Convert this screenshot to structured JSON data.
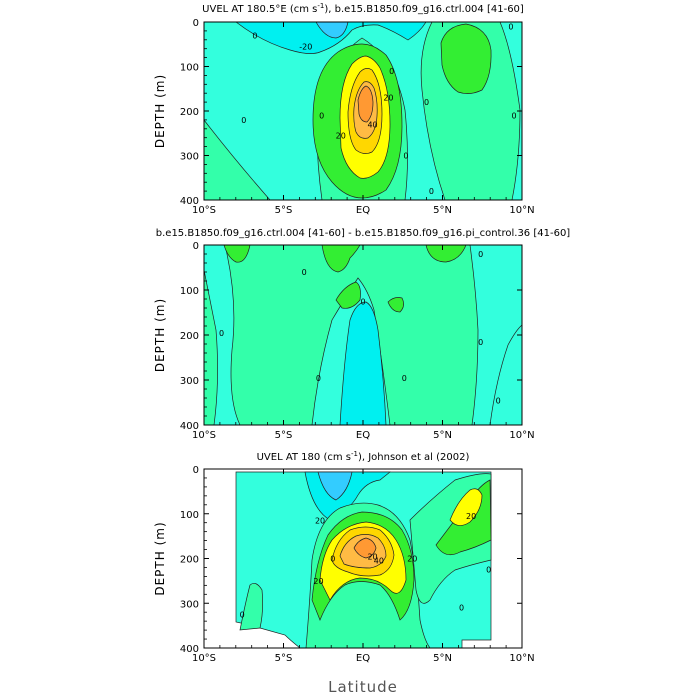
{
  "figure": {
    "xlabel": "Latitude",
    "colors": {
      "cyan_deep": "#33ccff",
      "cyan": "#00f0f0",
      "cyan_pale": "#33ffdd",
      "aqua": "#33ffaa",
      "green": "#33ee33",
      "yellow": "#ffff00",
      "gold": "#ffd700",
      "orange_light": "#ffbb44",
      "orange": "#ff9933"
    }
  },
  "chart_data": [
    {
      "type": "heatmap",
      "title_parts": [
        "UVEL AT 180.5°E (cm s",
        "-1",
        "), b.e15.B1850.f09_g16.ctrl.004 [41-60]"
      ],
      "xlabel": "",
      "ylabel": "DEPTH (m)",
      "xticks": [
        "10°S",
        "5°S",
        "EQ",
        "5°N",
        "10°N"
      ],
      "xtick_values": [
        -10,
        -5,
        0,
        5,
        10
      ],
      "yticks": [
        "0",
        "100",
        "200",
        "300",
        "400"
      ],
      "ytick_values": [
        0,
        100,
        200,
        300,
        400
      ],
      "xlim": [
        -10,
        10
      ],
      "ylim": [
        400,
        0
      ],
      "contour_labels": [
        {
          "text": "0",
          "lat": -6.8,
          "depth": 30
        },
        {
          "text": "-20",
          "lat": -3.6,
          "depth": 55
        },
        {
          "text": "0",
          "lat": -7.5,
          "depth": 220
        },
        {
          "text": "0",
          "lat": -2.6,
          "depth": 210
        },
        {
          "text": "0",
          "lat": 1.8,
          "depth": 110
        },
        {
          "text": "20",
          "lat": 1.6,
          "depth": 170
        },
        {
          "text": "40",
          "lat": 0.6,
          "depth": 230
        },
        {
          "text": "20",
          "lat": -1.4,
          "depth": 255
        },
        {
          "text": "0",
          "lat": 2.7,
          "depth": 300
        },
        {
          "text": "0",
          "lat": 4.0,
          "depth": 180
        },
        {
          "text": "0",
          "lat": 4.3,
          "depth": 380
        },
        {
          "text": "0",
          "lat": 9.5,
          "depth": 210
        },
        {
          "text": "0",
          "lat": 9.3,
          "depth": 10
        }
      ]
    },
    {
      "type": "heatmap",
      "title": "b.e15.B1850.f09_g16.ctrl.004 [41-60] - b.e15.B1850.f09_g16.pi_control.36 [41-60]",
      "xlabel": "",
      "ylabel": "DEPTH (m)",
      "xticks": [
        "10°S",
        "5°S",
        "EQ",
        "5°N",
        "10°N"
      ],
      "xtick_values": [
        -10,
        -5,
        0,
        5,
        10
      ],
      "yticks": [
        "0",
        "100",
        "200",
        "300",
        "400"
      ],
      "ytick_values": [
        0,
        100,
        200,
        300,
        400
      ],
      "xlim": [
        -10,
        10
      ],
      "ylim": [
        400,
        0
      ],
      "contour_labels": [
        {
          "text": "0",
          "lat": -3.7,
          "depth": 60
        },
        {
          "text": "0",
          "lat": -8.9,
          "depth": 195
        },
        {
          "text": "0",
          "lat": -2.8,
          "depth": 295
        },
        {
          "text": "0",
          "lat": 0.0,
          "depth": 125
        },
        {
          "text": "0",
          "lat": 2.6,
          "depth": 295
        },
        {
          "text": "0",
          "lat": 7.4,
          "depth": 20
        },
        {
          "text": "0",
          "lat": 7.4,
          "depth": 215
        },
        {
          "text": "0",
          "lat": 8.5,
          "depth": 345
        }
      ]
    },
    {
      "type": "heatmap",
      "title_parts": [
        "UVEL AT 180 (cm s",
        "-1",
        "), Johnson et al (2002)"
      ],
      "xlabel": "Latitude",
      "ylabel": "DEPTH (m)",
      "xticks": [
        "10°S",
        "5°S",
        "EQ",
        "5°N",
        "10°N"
      ],
      "xtick_values": [
        -10,
        -5,
        0,
        5,
        10
      ],
      "yticks": [
        "0",
        "100",
        "200",
        "300",
        "400"
      ],
      "ytick_values": [
        0,
        100,
        200,
        300,
        400
      ],
      "xlim": [
        -10,
        10
      ],
      "ylim": [
        400,
        0
      ],
      "data_extent_lat": [
        -8,
        8
      ],
      "contour_labels": [
        {
          "text": "20",
          "lat": -2.7,
          "depth": 115
        },
        {
          "text": "0",
          "lat": -1.9,
          "depth": 200
        },
        {
          "text": "20",
          "lat": 0.6,
          "depth": 195
        },
        {
          "text": "40",
          "lat": 1.0,
          "depth": 205
        },
        {
          "text": "20",
          "lat": 3.1,
          "depth": 200
        },
        {
          "text": "20",
          "lat": -2.8,
          "depth": 250
        },
        {
          "text": "20",
          "lat": 6.8,
          "depth": 105
        },
        {
          "text": "0",
          "lat": 6.2,
          "depth": 310
        },
        {
          "text": "0",
          "lat": 7.9,
          "depth": 225
        },
        {
          "text": "0",
          "lat": -7.6,
          "depth": 325
        }
      ]
    }
  ]
}
